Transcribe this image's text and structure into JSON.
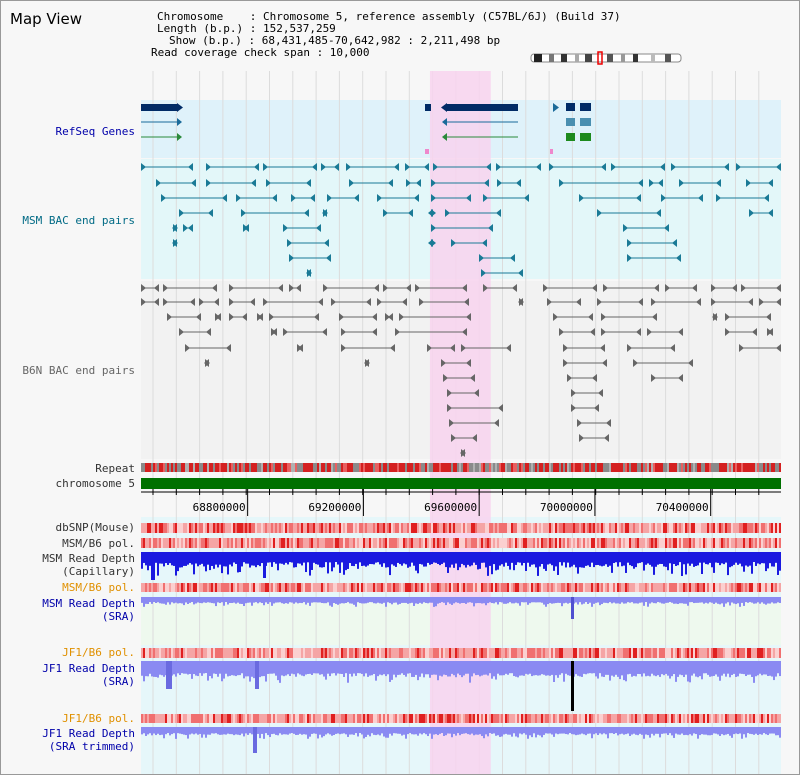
{
  "title": "Map View",
  "info": {
    "chromosome": "Chromosome    : Chromosome 5, reference assembly (C57BL/6J) (Build 37)",
    "length": "Length (b.p.) : 152,537,259",
    "show": "Show (b.p.) : 68,431,485-70,642,982 : 2,211,498 bp",
    "coverage": "Read coverage check span : 10,000"
  },
  "tracks": {
    "refseq": "RefSeq Genes",
    "msm_bac": "MSM BAC end pairs",
    "b6n_bac": "B6N BAC end pairs",
    "repeat": "Repeat",
    "chromosome": "chromosome 5",
    "dbsnp": "dbSNP(Mouse)",
    "msm_b6_pol_1": "MSM/B6 pol.",
    "msm_depth_cap_1": "MSM Read Depth",
    "msm_depth_cap_2": "(Capillary)",
    "msm_b6_pol_2": "MSM/B6 pol.",
    "msm_depth_sra_1": "MSM Read Depth",
    "msm_depth_sra_2": "(SRA)",
    "jf1_b6_pol_1": "JF1/B6 pol.",
    "jf1_depth_sra_1": "JF1 Read Depth",
    "jf1_depth_sra_2": "(SRA)",
    "jf1_b6_pol_2": "JF1/B6 pol.",
    "jf1_depth_trim_1": "JF1 Read Depth",
    "jf1_depth_trim_2": "(SRA trimmed)"
  },
  "ruler": {
    "ticks": [
      "68800000",
      "69200000",
      "69600000",
      "70000000",
      "70400000"
    ]
  },
  "view": {
    "start": 68431485,
    "end": 70642982,
    "highlight_start": 69430000,
    "highlight_end": 69640000
  },
  "colors": {
    "refseq_bg": "#dff2fa",
    "msm_bg": "#e3f7f9",
    "b6n_bg": "#f2f2f2",
    "highlight": "#f8d3ef",
    "chromosome": "#007000",
    "refseq_gene": "#002b66",
    "msm_pair": "#1a7a96",
    "b6n_pair": "#666666",
    "depth_cap": "#1a1ae0",
    "depth_sra": "#8a8af2",
    "pol_red": "#e83030"
  }
}
